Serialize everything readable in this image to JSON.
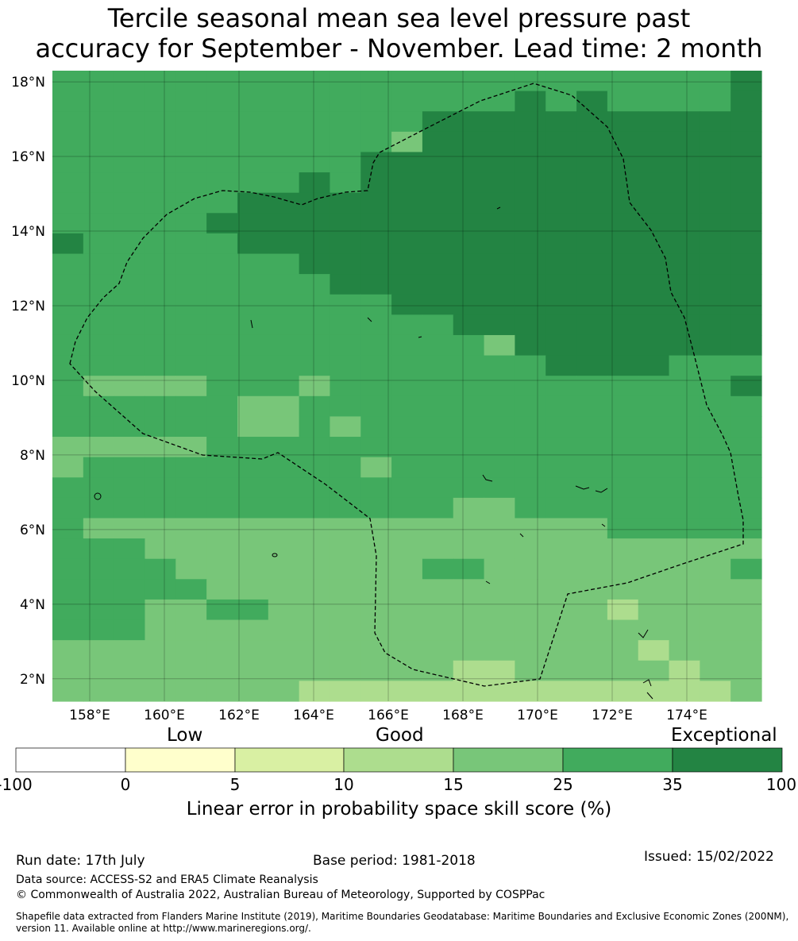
{
  "title": {
    "line1": "Tercile seasonal mean sea level pressure past",
    "line2": "accuracy for September - November. Lead time: 2 month"
  },
  "map": {
    "lat_labels": [
      "18°N",
      "16°N",
      "14°N",
      "12°N",
      "10°N",
      "8°N",
      "6°N",
      "4°N",
      "2°N"
    ],
    "lat_values": [
      18,
      16,
      14,
      12,
      10,
      8,
      6,
      4,
      2
    ],
    "lon_labels": [
      "158°E",
      "160°E",
      "162°E",
      "164°E",
      "166°E",
      "168°E",
      "170°E",
      "172°E",
      "174°E"
    ],
    "lon_values": [
      158,
      160,
      162,
      164,
      166,
      168,
      170,
      172,
      174
    ],
    "extent": {
      "lon_min": 157,
      "lon_max": 176,
      "lat_min": 1.4,
      "lat_max": 18.3
    }
  },
  "colorbar": {
    "categories": [
      "Low",
      "Good",
      "Exceptional"
    ],
    "ticks": [
      "-100",
      "0",
      "5",
      "10",
      "15",
      "25",
      "35",
      "100"
    ],
    "colors": [
      "#ffffff",
      "#ffffcc",
      "#d9f0a3",
      "#addd8e",
      "#78c679",
      "#41ab5d",
      "#238443"
    ],
    "label": "Linear error in probability space skill score (%)"
  },
  "footer": {
    "run_date": "Run date: 17th July",
    "base_period": "Base period: 1981-2018",
    "issued": "Issued: 15/02/2022",
    "data_source": "Data source: ACCESS-S2 and ERA5 Climate Reanalysis",
    "copyright": "© Commonwealth of Australia 2022, Australian Bureau of Meteorology, Supported by COSPPac",
    "shapefile": "Shapefile data extracted from Flanders Marine Institute (2019), Maritime Boundaries Geodatabase: Maritime Boundaries and Exclusive Economic Zones (200NM), version 11. Available online at http://www.marineregions.org/."
  }
}
